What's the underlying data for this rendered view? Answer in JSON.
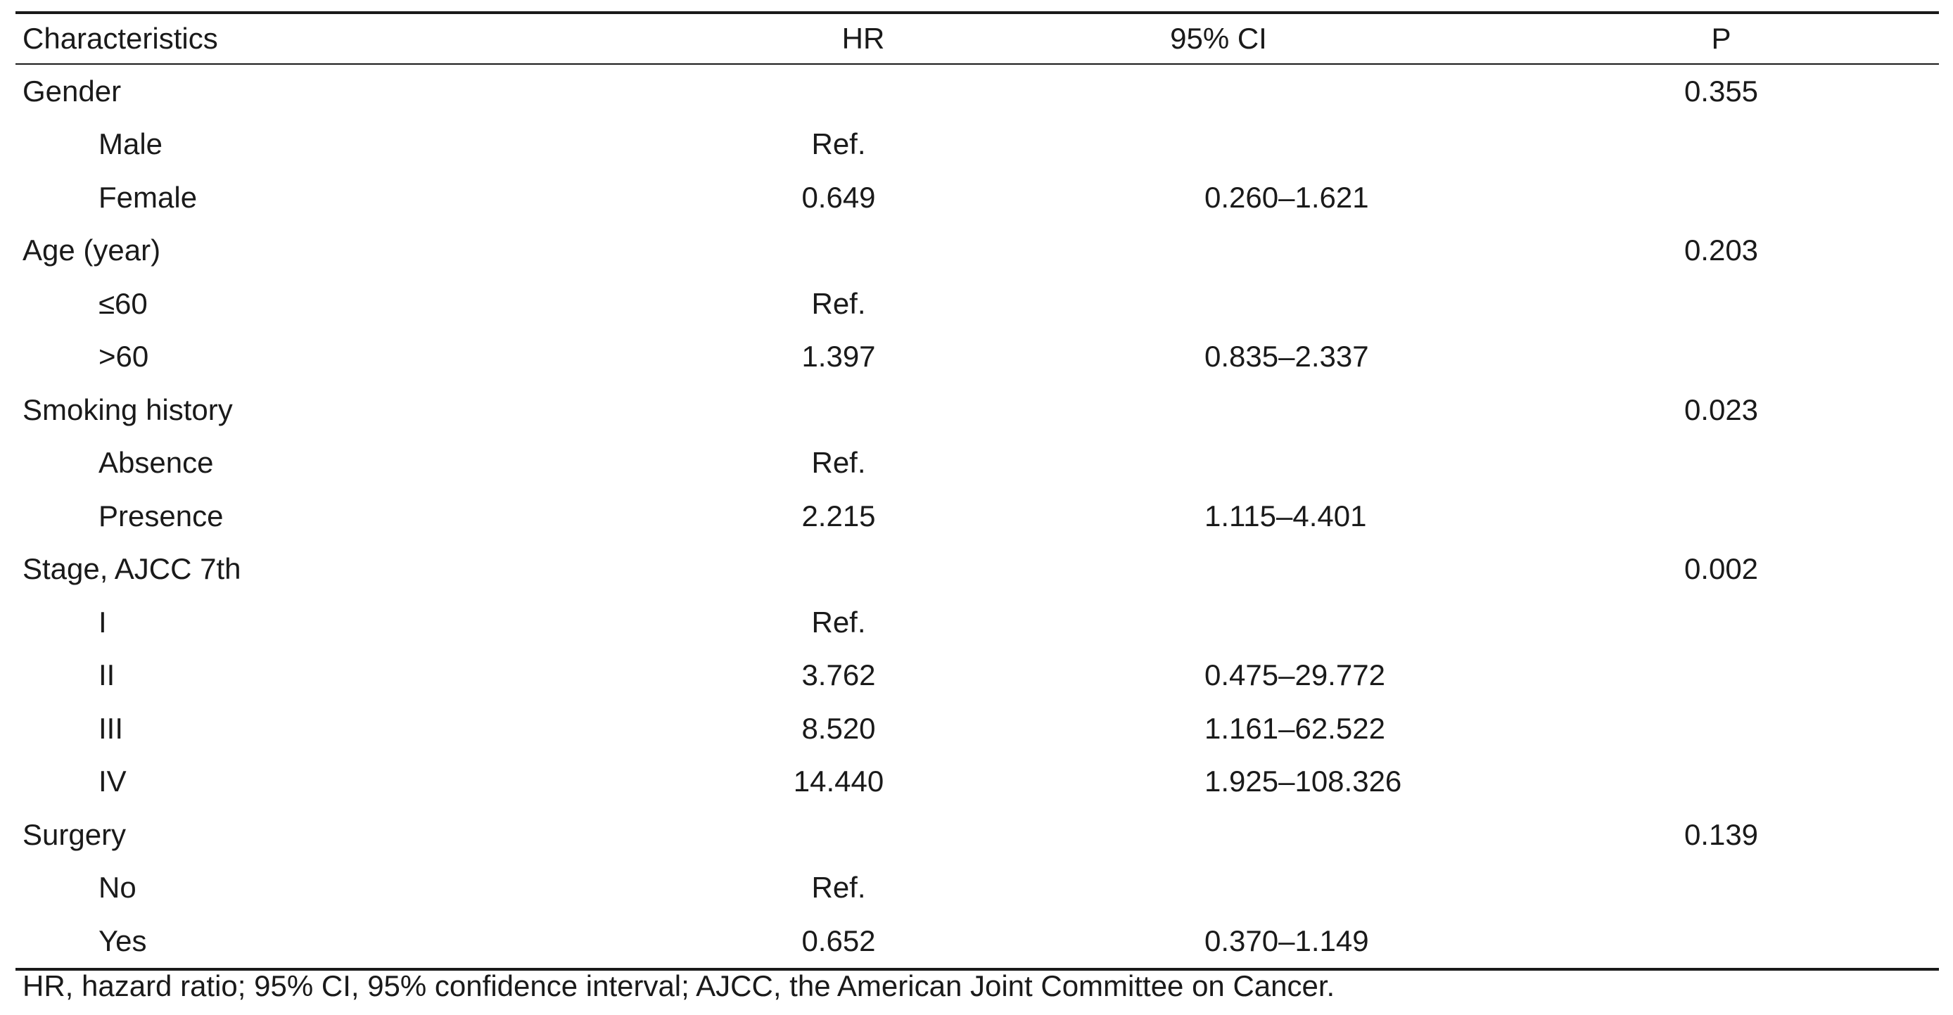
{
  "table": {
    "headers": {
      "characteristics": "Characteristics",
      "hr": "HR",
      "ci": "95% CI",
      "p": "P"
    },
    "rows": [
      {
        "label": "Gender",
        "type": "group",
        "hr": "",
        "ci": "",
        "p": "0.355"
      },
      {
        "label": "Male",
        "type": "sub",
        "hr": "Ref.",
        "ci": "",
        "p": ""
      },
      {
        "label": "Female",
        "type": "sub",
        "hr": "0.649",
        "ci": "0.260–1.621",
        "p": ""
      },
      {
        "label": "Age (year)",
        "type": "group",
        "hr": "",
        "ci": "",
        "p": "0.203"
      },
      {
        "label": "≤60",
        "type": "sub",
        "hr": "Ref.",
        "ci": "",
        "p": ""
      },
      {
        "label": ">60",
        "type": "sub",
        "hr": "1.397",
        "ci": "0.835–2.337",
        "p": ""
      },
      {
        "label": "Smoking history",
        "type": "group",
        "hr": "",
        "ci": "",
        "p": "0.023"
      },
      {
        "label": "Absence",
        "type": "sub",
        "hr": "Ref.",
        "ci": "",
        "p": ""
      },
      {
        "label": "Presence",
        "type": "sub",
        "hr": "2.215",
        "ci": "1.115–4.401",
        "p": ""
      },
      {
        "label": "Stage, AJCC 7th",
        "type": "group",
        "hr": "",
        "ci": "",
        "p": "0.002"
      },
      {
        "label": "I",
        "type": "sub",
        "hr": "Ref.",
        "ci": "",
        "p": ""
      },
      {
        "label": "II",
        "type": "sub",
        "hr": "3.762",
        "ci": "0.475–29.772",
        "p": ""
      },
      {
        "label": "III",
        "type": "sub",
        "hr": "8.520",
        "ci": "1.161–62.522",
        "p": ""
      },
      {
        "label": "IV",
        "type": "sub",
        "hr": "14.440",
        "ci": "1.925–108.326",
        "p": ""
      },
      {
        "label": "Surgery",
        "type": "group",
        "hr": "",
        "ci": "",
        "p": "0.139"
      },
      {
        "label": "No",
        "type": "sub",
        "hr": "Ref.",
        "ci": "",
        "p": ""
      },
      {
        "label": "Yes",
        "type": "sub",
        "hr": "0.652",
        "ci": "0.370–1.149",
        "p": ""
      }
    ]
  },
  "footnote": "HR, hazard ratio; 95% CI, 95% confidence interval; AJCC, the American Joint Committee on Cancer."
}
